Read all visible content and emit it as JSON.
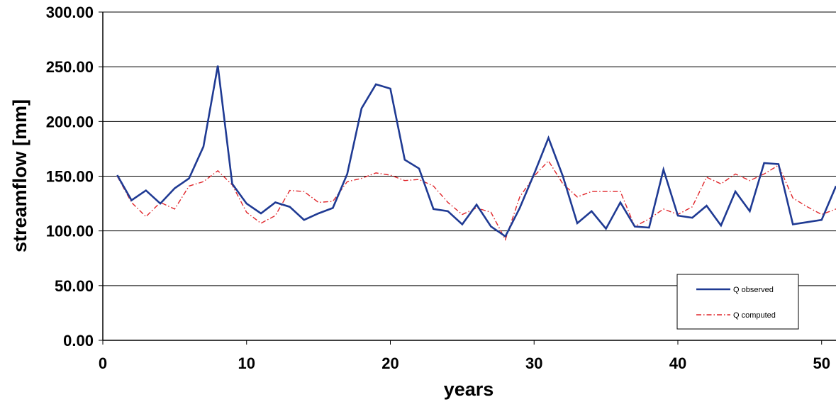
{
  "chart_data": {
    "type": "line",
    "title": "",
    "xlabel": "years",
    "ylabel": "streamflow [mm]",
    "xlim": [
      0,
      51
    ],
    "ylim": [
      0,
      300
    ],
    "x_ticks": [
      0,
      10,
      20,
      30,
      40,
      50
    ],
    "x_tick_labels": [
      "0",
      "10",
      "20",
      "30",
      "40",
      "50"
    ],
    "y_ticks": [
      0,
      50,
      100,
      150,
      200,
      250,
      300
    ],
    "y_tick_labels": [
      "0.00",
      "50.00",
      "100.00",
      "150.00",
      "200.00",
      "250.00",
      "300.00"
    ],
    "grid": "horizontal",
    "legend_position": "bottom-right",
    "x": [
      1,
      2,
      3,
      4,
      5,
      6,
      7,
      8,
      9,
      10,
      11,
      12,
      13,
      14,
      15,
      16,
      17,
      18,
      19,
      20,
      21,
      22,
      23,
      24,
      25,
      26,
      27,
      28,
      29,
      30,
      31,
      32,
      33,
      34,
      35,
      36,
      37,
      38,
      39,
      40,
      41,
      42,
      43,
      44,
      45,
      46,
      47,
      48,
      49,
      50,
      51
    ],
    "series": [
      {
        "name": "Q observed",
        "color": "#1f3a93",
        "style": "solid",
        "values": [
          151,
          128,
          137,
          125,
          139,
          148,
          177,
          251,
          143,
          125,
          116,
          126,
          122,
          110,
          116,
          121,
          152,
          212,
          234,
          230,
          165,
          157,
          120,
          118,
          106,
          124,
          104,
          95,
          121,
          152,
          185,
          150,
          107,
          118,
          102,
          126,
          104,
          103,
          156,
          114,
          112,
          123,
          105,
          136,
          118,
          162,
          161,
          106,
          108,
          110,
          141
        ]
      },
      {
        "name": "Q computed",
        "color": "#e0262b",
        "style": "dashdot",
        "values": [
          150,
          126,
          113,
          126,
          120,
          141,
          145,
          155,
          142,
          117,
          107,
          114,
          137,
          136,
          126,
          127,
          145,
          148,
          153,
          151,
          146,
          147,
          141,
          126,
          115,
          121,
          117,
          92,
          131,
          150,
          164,
          143,
          131,
          136,
          136,
          136,
          104,
          111,
          120,
          115,
          122,
          149,
          143,
          152,
          146,
          152,
          160,
          130,
          122,
          115,
          120
        ]
      }
    ]
  }
}
